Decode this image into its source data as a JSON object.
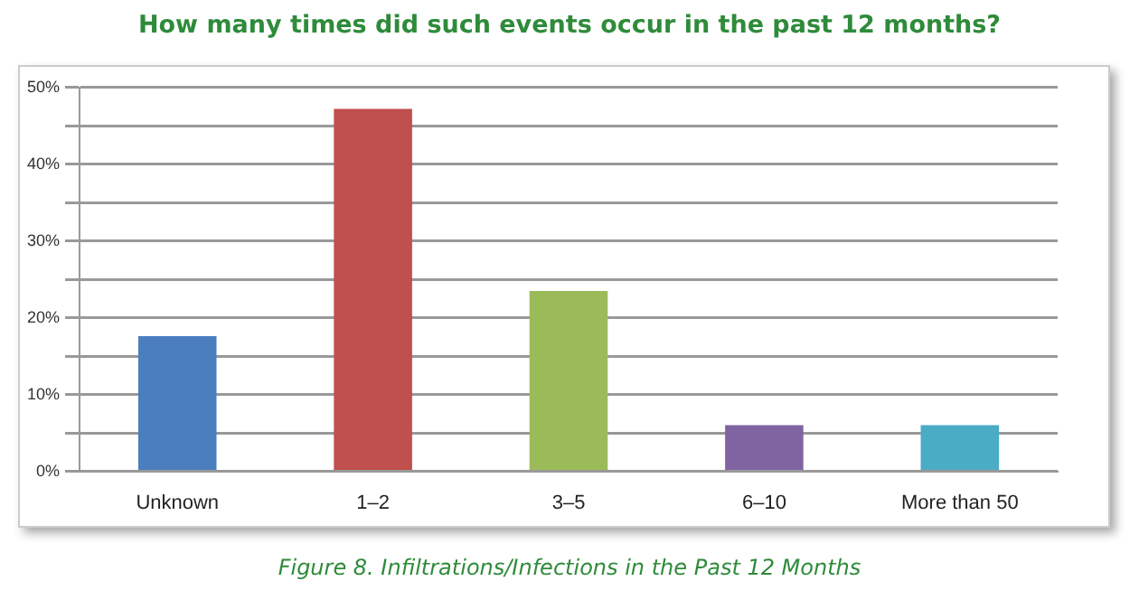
{
  "chart_data": {
    "type": "bar",
    "title": "How many times did such events occur in the past 12 months?",
    "annotations": [
      "Figure 8. Infiltrations/Infections in the Past 12 Months"
    ],
    "categories": [
      "Unknown",
      "1–2",
      "3–5",
      "6–10",
      "More than 50"
    ],
    "values": [
      17.6,
      47.2,
      23.5,
      6.0,
      6.0
    ],
    "colors": [
      "#4a7ebf",
      "#c0504d",
      "#9bbb59",
      "#8064a2",
      "#4bacc6"
    ],
    "ylim": [
      0,
      50
    ],
    "yticks": [
      {
        "value": 0,
        "label": "0%"
      },
      {
        "value": 5,
        "label": null
      },
      {
        "value": 10,
        "label": "10%"
      },
      {
        "value": 15,
        "label": null
      },
      {
        "value": 20,
        "label": "20%"
      },
      {
        "value": 25,
        "label": null
      },
      {
        "value": 30,
        "label": "30%"
      },
      {
        "value": 35,
        "label": null
      },
      {
        "value": 40,
        "label": "40%"
      },
      {
        "value": 45,
        "label": null
      },
      {
        "value": 50,
        "label": "50%"
      }
    ],
    "grid": "y",
    "legend": false
  }
}
